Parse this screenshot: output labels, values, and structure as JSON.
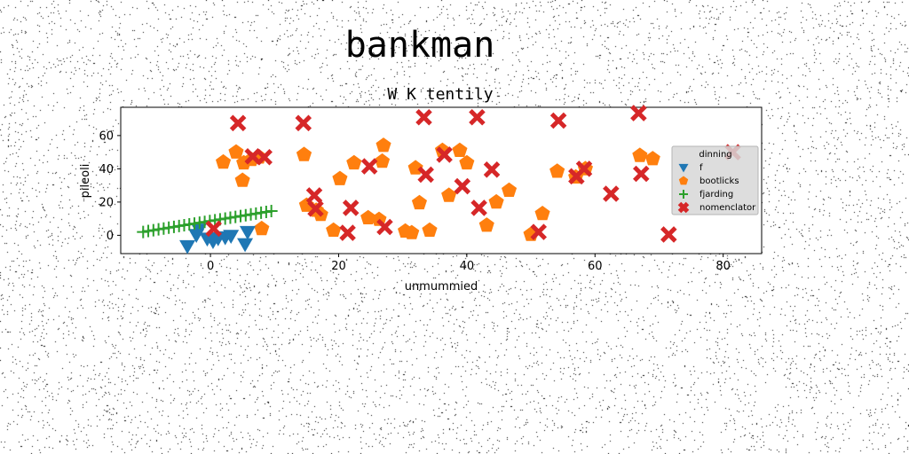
{
  "figure": {
    "suptitle": "bankman"
  },
  "chart_data": {
    "type": "scatter",
    "title": "W K tentily",
    "xlabel": "unmummied",
    "ylabel": "pileoli",
    "xlim": [
      -14,
      86
    ],
    "ylim": [
      -11,
      77
    ],
    "xticks": [
      0,
      20,
      40,
      60,
      80
    ],
    "yticks": [
      0,
      20,
      40,
      60
    ],
    "grid": false,
    "legend": {
      "title": "dinning",
      "placement": "center-right"
    },
    "series": [
      {
        "name": "f",
        "marker": "triangle-down",
        "color": "#1f77b4",
        "points": [
          [
            -3.6,
            -6.5
          ],
          [
            -1.8,
            3.5
          ],
          [
            -2.2,
            0.2
          ],
          [
            -0.5,
            -2
          ],
          [
            0.4,
            -3.5
          ],
          [
            1.2,
            -1.8
          ],
          [
            2.3,
            -1.2
          ],
          [
            3.2,
            -0.3
          ],
          [
            5.4,
            -5.3
          ],
          [
            5.8,
            2
          ]
        ]
      },
      {
        "name": "bootlicks",
        "marker": "pentagon",
        "color": "#ff7f0e",
        "points": [
          [
            2,
            44
          ],
          [
            4,
            50
          ],
          [
            5,
            33
          ],
          [
            5.2,
            43.5
          ],
          [
            6.4,
            45.5
          ],
          [
            7.6,
            47
          ],
          [
            8,
            4
          ],
          [
            14.6,
            48.5
          ],
          [
            15,
            18
          ],
          [
            16.5,
            15
          ],
          [
            17.2,
            12.5
          ],
          [
            19.2,
            3
          ],
          [
            20.2,
            34
          ],
          [
            22.4,
            43.5
          ],
          [
            24.6,
            10.5
          ],
          [
            26.3,
            9.5
          ],
          [
            26.8,
            44.5
          ],
          [
            27,
            54
          ],
          [
            30.4,
            2.5
          ],
          [
            31.4,
            1.5
          ],
          [
            32,
            40.5
          ],
          [
            32.6,
            19.5
          ],
          [
            34.2,
            3
          ],
          [
            36.2,
            51
          ],
          [
            37.2,
            24
          ],
          [
            38.9,
            51
          ],
          [
            40,
            43.5
          ],
          [
            43.1,
            6
          ],
          [
            44.6,
            20
          ],
          [
            46.6,
            27
          ],
          [
            50,
            0.5
          ],
          [
            51.8,
            13
          ],
          [
            54.1,
            38.5
          ],
          [
            57,
            35
          ],
          [
            58.5,
            40
          ],
          [
            67,
            48
          ],
          [
            69,
            46
          ]
        ]
      },
      {
        "name": "fjarding",
        "marker": "plus",
        "color": "#2ca02c",
        "points": [
          [
            -10.5,
            2
          ],
          [
            -9.7,
            2.6
          ],
          [
            -8.9,
            3.1
          ],
          [
            -8.1,
            3.6
          ],
          [
            -7.3,
            4.1
          ],
          [
            -6.5,
            4.6
          ],
          [
            -5.7,
            5.1
          ],
          [
            -4.9,
            5.6
          ],
          [
            -4.1,
            6.1
          ],
          [
            -3.3,
            6.6
          ],
          [
            -2.5,
            7.1
          ],
          [
            -1.7,
            7.6
          ],
          [
            -0.9,
            8.1
          ],
          [
            -0.1,
            8.6
          ],
          [
            0.7,
            9.1
          ],
          [
            1.5,
            9.6
          ],
          [
            2.3,
            10.1
          ],
          [
            3.1,
            10.6
          ],
          [
            3.9,
            11.1
          ],
          [
            4.7,
            11.6
          ],
          [
            5.5,
            12.1
          ],
          [
            6.3,
            12.6
          ],
          [
            7.1,
            13.1
          ],
          [
            7.9,
            13.6
          ],
          [
            8.7,
            14.1
          ],
          [
            9.5,
            14.6
          ]
        ]
      },
      {
        "name": "nomenclator",
        "marker": "x",
        "color": "#d62728",
        "points": [
          [
            0.5,
            4
          ],
          [
            4.3,
            67.5
          ],
          [
            6.6,
            47.5
          ],
          [
            8.4,
            47
          ],
          [
            14.5,
            67.5
          ],
          [
            16.2,
            24
          ],
          [
            16.4,
            16
          ],
          [
            21.4,
            1.5
          ],
          [
            21.9,
            16.5
          ],
          [
            24.8,
            41.5
          ],
          [
            27.2,
            5
          ],
          [
            33.3,
            71
          ],
          [
            33.6,
            36.5
          ],
          [
            36.5,
            48.5
          ],
          [
            39.3,
            29.5
          ],
          [
            41.6,
            71
          ],
          [
            41.9,
            16.5
          ],
          [
            43.9,
            39.5
          ],
          [
            51.2,
            2
          ],
          [
            54.3,
            69
          ],
          [
            57.1,
            35.5
          ],
          [
            58.3,
            40
          ],
          [
            62.5,
            25
          ],
          [
            66.8,
            73.5
          ],
          [
            67.2,
            37
          ],
          [
            71.5,
            0.5
          ],
          [
            81.5,
            50
          ]
        ]
      }
    ]
  }
}
